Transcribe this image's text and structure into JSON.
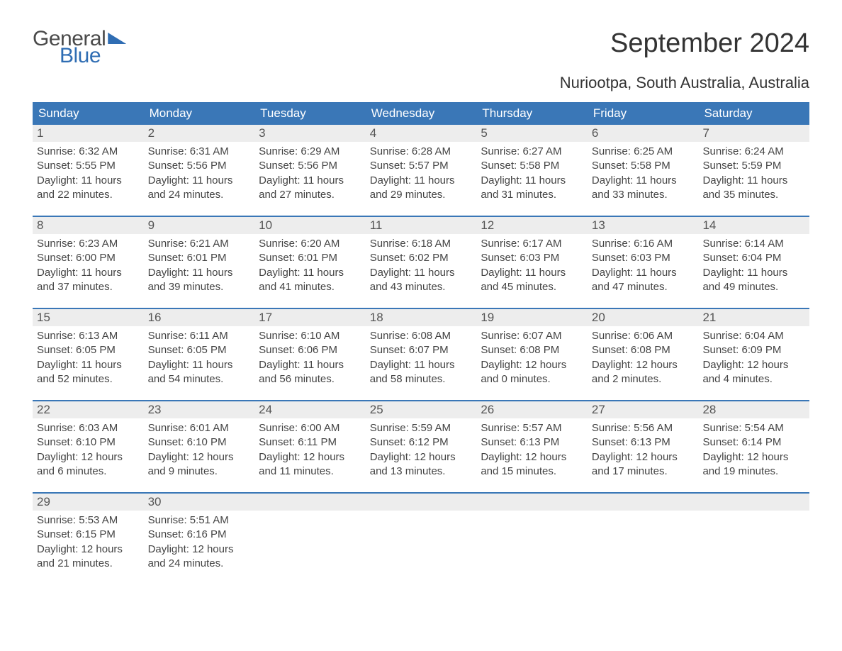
{
  "logo": {
    "word1": "General",
    "word2": "Blue"
  },
  "title": "September 2024",
  "location": "Nuriootpa, South Australia, Australia",
  "colors": {
    "header_bg": "#3a77b7",
    "header_text": "#ffffff",
    "daynum_bg": "#ededed",
    "daynum_text": "#555555",
    "body_text": "#444444",
    "accent": "#2f6db3",
    "page_bg": "#ffffff"
  },
  "layout": {
    "columns": 7,
    "weekday_fontsize": 17,
    "daynum_fontsize": 17,
    "body_fontsize": 15,
    "title_fontsize": 38,
    "location_fontsize": 22
  },
  "weekdays": [
    "Sunday",
    "Monday",
    "Tuesday",
    "Wednesday",
    "Thursday",
    "Friday",
    "Saturday"
  ],
  "weeks": [
    [
      {
        "n": "1",
        "sunrise": "Sunrise: 6:32 AM",
        "sunset": "Sunset: 5:55 PM",
        "day1": "Daylight: 11 hours",
        "day2": "and 22 minutes."
      },
      {
        "n": "2",
        "sunrise": "Sunrise: 6:31 AM",
        "sunset": "Sunset: 5:56 PM",
        "day1": "Daylight: 11 hours",
        "day2": "and 24 minutes."
      },
      {
        "n": "3",
        "sunrise": "Sunrise: 6:29 AM",
        "sunset": "Sunset: 5:56 PM",
        "day1": "Daylight: 11 hours",
        "day2": "and 27 minutes."
      },
      {
        "n": "4",
        "sunrise": "Sunrise: 6:28 AM",
        "sunset": "Sunset: 5:57 PM",
        "day1": "Daylight: 11 hours",
        "day2": "and 29 minutes."
      },
      {
        "n": "5",
        "sunrise": "Sunrise: 6:27 AM",
        "sunset": "Sunset: 5:58 PM",
        "day1": "Daylight: 11 hours",
        "day2": "and 31 minutes."
      },
      {
        "n": "6",
        "sunrise": "Sunrise: 6:25 AM",
        "sunset": "Sunset: 5:58 PM",
        "day1": "Daylight: 11 hours",
        "day2": "and 33 minutes."
      },
      {
        "n": "7",
        "sunrise": "Sunrise: 6:24 AM",
        "sunset": "Sunset: 5:59 PM",
        "day1": "Daylight: 11 hours",
        "day2": "and 35 minutes."
      }
    ],
    [
      {
        "n": "8",
        "sunrise": "Sunrise: 6:23 AM",
        "sunset": "Sunset: 6:00 PM",
        "day1": "Daylight: 11 hours",
        "day2": "and 37 minutes."
      },
      {
        "n": "9",
        "sunrise": "Sunrise: 6:21 AM",
        "sunset": "Sunset: 6:01 PM",
        "day1": "Daylight: 11 hours",
        "day2": "and 39 minutes."
      },
      {
        "n": "10",
        "sunrise": "Sunrise: 6:20 AM",
        "sunset": "Sunset: 6:01 PM",
        "day1": "Daylight: 11 hours",
        "day2": "and 41 minutes."
      },
      {
        "n": "11",
        "sunrise": "Sunrise: 6:18 AM",
        "sunset": "Sunset: 6:02 PM",
        "day1": "Daylight: 11 hours",
        "day2": "and 43 minutes."
      },
      {
        "n": "12",
        "sunrise": "Sunrise: 6:17 AM",
        "sunset": "Sunset: 6:03 PM",
        "day1": "Daylight: 11 hours",
        "day2": "and 45 minutes."
      },
      {
        "n": "13",
        "sunrise": "Sunrise: 6:16 AM",
        "sunset": "Sunset: 6:03 PM",
        "day1": "Daylight: 11 hours",
        "day2": "and 47 minutes."
      },
      {
        "n": "14",
        "sunrise": "Sunrise: 6:14 AM",
        "sunset": "Sunset: 6:04 PM",
        "day1": "Daylight: 11 hours",
        "day2": "and 49 minutes."
      }
    ],
    [
      {
        "n": "15",
        "sunrise": "Sunrise: 6:13 AM",
        "sunset": "Sunset: 6:05 PM",
        "day1": "Daylight: 11 hours",
        "day2": "and 52 minutes."
      },
      {
        "n": "16",
        "sunrise": "Sunrise: 6:11 AM",
        "sunset": "Sunset: 6:05 PM",
        "day1": "Daylight: 11 hours",
        "day2": "and 54 minutes."
      },
      {
        "n": "17",
        "sunrise": "Sunrise: 6:10 AM",
        "sunset": "Sunset: 6:06 PM",
        "day1": "Daylight: 11 hours",
        "day2": "and 56 minutes."
      },
      {
        "n": "18",
        "sunrise": "Sunrise: 6:08 AM",
        "sunset": "Sunset: 6:07 PM",
        "day1": "Daylight: 11 hours",
        "day2": "and 58 minutes."
      },
      {
        "n": "19",
        "sunrise": "Sunrise: 6:07 AM",
        "sunset": "Sunset: 6:08 PM",
        "day1": "Daylight: 12 hours",
        "day2": "and 0 minutes."
      },
      {
        "n": "20",
        "sunrise": "Sunrise: 6:06 AM",
        "sunset": "Sunset: 6:08 PM",
        "day1": "Daylight: 12 hours",
        "day2": "and 2 minutes."
      },
      {
        "n": "21",
        "sunrise": "Sunrise: 6:04 AM",
        "sunset": "Sunset: 6:09 PM",
        "day1": "Daylight: 12 hours",
        "day2": "and 4 minutes."
      }
    ],
    [
      {
        "n": "22",
        "sunrise": "Sunrise: 6:03 AM",
        "sunset": "Sunset: 6:10 PM",
        "day1": "Daylight: 12 hours",
        "day2": "and 6 minutes."
      },
      {
        "n": "23",
        "sunrise": "Sunrise: 6:01 AM",
        "sunset": "Sunset: 6:10 PM",
        "day1": "Daylight: 12 hours",
        "day2": "and 9 minutes."
      },
      {
        "n": "24",
        "sunrise": "Sunrise: 6:00 AM",
        "sunset": "Sunset: 6:11 PM",
        "day1": "Daylight: 12 hours",
        "day2": "and 11 minutes."
      },
      {
        "n": "25",
        "sunrise": "Sunrise: 5:59 AM",
        "sunset": "Sunset: 6:12 PM",
        "day1": "Daylight: 12 hours",
        "day2": "and 13 minutes."
      },
      {
        "n": "26",
        "sunrise": "Sunrise: 5:57 AM",
        "sunset": "Sunset: 6:13 PM",
        "day1": "Daylight: 12 hours",
        "day2": "and 15 minutes."
      },
      {
        "n": "27",
        "sunrise": "Sunrise: 5:56 AM",
        "sunset": "Sunset: 6:13 PM",
        "day1": "Daylight: 12 hours",
        "day2": "and 17 minutes."
      },
      {
        "n": "28",
        "sunrise": "Sunrise: 5:54 AM",
        "sunset": "Sunset: 6:14 PM",
        "day1": "Daylight: 12 hours",
        "day2": "and 19 minutes."
      }
    ],
    [
      {
        "n": "29",
        "sunrise": "Sunrise: 5:53 AM",
        "sunset": "Sunset: 6:15 PM",
        "day1": "Daylight: 12 hours",
        "day2": "and 21 minutes."
      },
      {
        "n": "30",
        "sunrise": "Sunrise: 5:51 AM",
        "sunset": "Sunset: 6:16 PM",
        "day1": "Daylight: 12 hours",
        "day2": "and 24 minutes."
      },
      {
        "empty": true
      },
      {
        "empty": true
      },
      {
        "empty": true
      },
      {
        "empty": true
      },
      {
        "empty": true
      }
    ]
  ]
}
